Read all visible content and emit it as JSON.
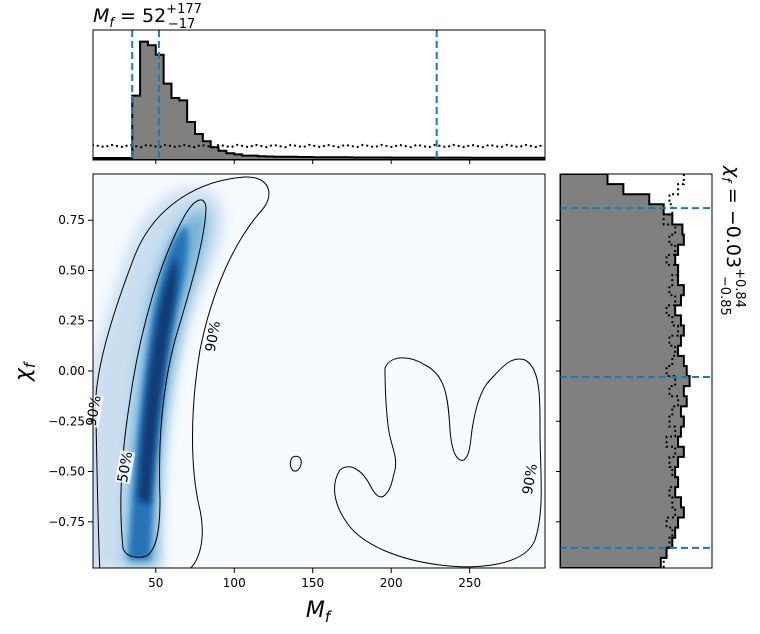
{
  "figure": {
    "title_top": {
      "base": "M",
      "sub": "f",
      "eq": " = 52",
      "sup": "+177",
      "subscript": "−17"
    },
    "title_right": {
      "base": "χ",
      "sub": "f",
      "eq": " = −0.03",
      "sup": "+0.84",
      "subscript": "−0.85"
    },
    "xlabel": {
      "base": "M",
      "sub": "f"
    },
    "ylabel": {
      "base": "χ",
      "sub": "f"
    }
  },
  "chart_data": [
    {
      "type": "heatmap",
      "panel": "joint",
      "xlabel": "M_f",
      "ylabel": "χ_f",
      "xlim": [
        10,
        298
      ],
      "ylim": [
        -0.98,
        0.98
      ],
      "x_ticks": [
        50,
        100,
        150,
        200,
        250
      ],
      "y_ticks": [
        -0.75,
        -0.5,
        -0.25,
        0.0,
        0.25,
        0.5,
        0.75
      ],
      "x_tick_labels": [
        "50",
        "100",
        "150",
        "200",
        "250"
      ],
      "y_tick_labels": [
        "−0.75",
        "−0.50",
        "−0.25",
        "0.00",
        "0.25",
        "0.50",
        "0.75"
      ],
      "density_ridge": [
        {
          "chi": -0.9,
          "mf": 42
        },
        {
          "chi": -0.5,
          "mf": 45
        },
        {
          "chi": 0.0,
          "mf": 50
        },
        {
          "chi": 0.5,
          "mf": 58
        },
        {
          "chi": 0.85,
          "mf": 72
        }
      ],
      "contour_labels": [
        {
          "text": "50%",
          "mf": 32,
          "chi": -0.48
        },
        {
          "text": "90%",
          "mf": 88,
          "chi": 0.17
        },
        {
          "text": "90%",
          "mf": 290,
          "chi": -0.54
        },
        {
          "text": "90%",
          "mf": 12,
          "chi": -0.2
        }
      ],
      "colormap": "Blues",
      "grid": false
    },
    {
      "type": "area",
      "panel": "marginal-top",
      "title": "M_f = 52 (+177, −17)",
      "xlim": [
        10,
        298
      ],
      "bins_x": [
        10,
        15,
        20,
        25,
        30,
        35,
        40,
        45,
        50,
        55,
        60,
        65,
        70,
        75,
        80,
        85,
        90,
        95,
        100,
        105,
        110,
        115,
        120,
        125,
        130,
        140,
        150,
        175,
        200,
        250,
        298
      ],
      "posterior_density": [
        0.0,
        0.0,
        0.0,
        0.0,
        0.0,
        0.52,
        0.97,
        0.94,
        0.86,
        0.62,
        0.5,
        0.48,
        0.3,
        0.2,
        0.14,
        0.09,
        0.06,
        0.04,
        0.03,
        0.02,
        0.02,
        0.015,
        0.012,
        0.01,
        0.01,
        0.008,
        0.006,
        0.004,
        0.003,
        0.002
      ],
      "prior_level": 0.1,
      "credible_lines": [
        35,
        52,
        229
      ]
    },
    {
      "type": "area",
      "panel": "marginal-right",
      "title": "χ_f = −0.03 (+0.84, −0.85)",
      "ylim": [
        -0.98,
        0.98
      ],
      "chi_bins": [
        0.95,
        0.9,
        0.85,
        0.8,
        0.75,
        0.7,
        0.65,
        0.6,
        0.55,
        0.5,
        0.45,
        0.4,
        0.35,
        0.3,
        0.25,
        0.2,
        0.15,
        0.1,
        0.05,
        0.0,
        -0.05,
        -0.1,
        -0.15,
        -0.2,
        -0.25,
        -0.3,
        -0.35,
        -0.4,
        -0.45,
        -0.5,
        -0.55,
        -0.6,
        -0.65,
        -0.7,
        -0.75,
        -0.8,
        -0.85,
        -0.9,
        -0.95
      ],
      "posterior_density": [
        0.33,
        0.44,
        0.62,
        0.72,
        0.78,
        0.85,
        0.86,
        0.82,
        0.8,
        0.82,
        0.82,
        0.86,
        0.84,
        0.8,
        0.84,
        0.86,
        0.84,
        0.82,
        0.86,
        0.88,
        0.9,
        0.86,
        0.88,
        0.84,
        0.86,
        0.84,
        0.82,
        0.86,
        0.82,
        0.8,
        0.82,
        0.8,
        0.84,
        0.86,
        0.82,
        0.8,
        0.78,
        0.74,
        0.7
      ],
      "prior_density": [
        0.86,
        0.82,
        0.76,
        0.78,
        0.72,
        0.8,
        0.76,
        0.8,
        0.74,
        0.82,
        0.78,
        0.76,
        0.8,
        0.74,
        0.78,
        0.82,
        0.76,
        0.8,
        0.78,
        0.74,
        0.8,
        0.76,
        0.82,
        0.78,
        0.76,
        0.8,
        0.74,
        0.8,
        0.76,
        0.78,
        0.82,
        0.76,
        0.78,
        0.8,
        0.74,
        0.78,
        0.76,
        0.74,
        0.72
      ],
      "credible_lines": [
        -0.88,
        -0.03,
        0.81
      ]
    }
  ],
  "colors": {
    "hist_fill": "#808080",
    "line": "#000000",
    "credible": "#1f77b4",
    "cmap_low": "#f7fbff",
    "cmap_high": "#08306b"
  }
}
